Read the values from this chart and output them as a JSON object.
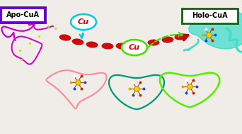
{
  "bg_color": "#f0ede8",
  "apo_label": "Apo-CuA",
  "holo_label": "Holo-CuA",
  "cu_label": "Cu",
  "apo_box_color": "#6600cc",
  "holo_box_color": "#1a5c1a",
  "cu_circle1_color": "#00ccdd",
  "cu_circle2_color": "#44dd00",
  "cu_text_color": "#dd0000",
  "arrow_color": "#cc0000",
  "fig_width": 3.42,
  "fig_height": 1.89,
  "dpi": 100,
  "apo_peptide_color": "#cc00cc",
  "pink_loop_color": "#ff8899",
  "teal_loop_color": "#009977",
  "green_loop_color": "#55ee00",
  "cyan_protein_color": "#44ddcc",
  "metal_color": "#cc8800",
  "metal_outer": "#ffcc00",
  "ligand_line_color": "#885500",
  "ligand_dot_blue": "#2244cc",
  "ligand_dot_red": "#cc2200",
  "ligand_dot_white": "#ffffff",
  "ligand_dot_gold": "#ddaa00"
}
